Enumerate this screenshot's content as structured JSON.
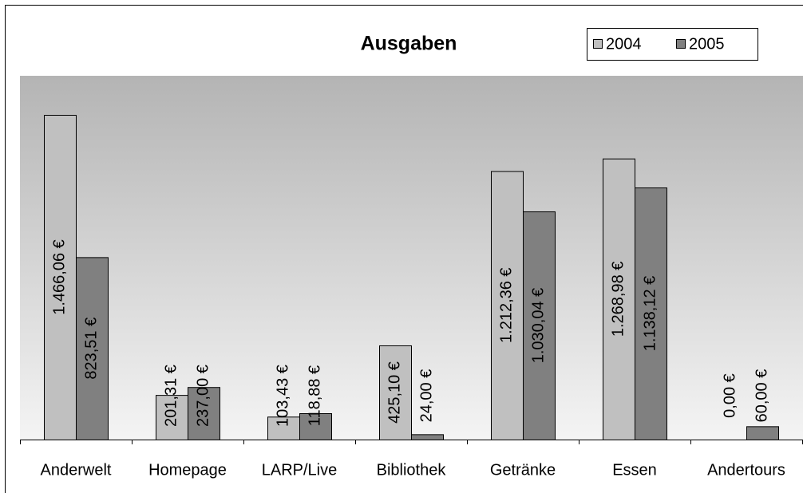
{
  "chart_data": {
    "type": "bar",
    "title": "Ausgaben",
    "categories": [
      "Anderwelt",
      "Homepage",
      "LARP/Live",
      "Bibliothek",
      "Getränke",
      "Essen",
      "Andertours"
    ],
    "series": [
      {
        "name": "2004",
        "color": "#c0c0c0",
        "values": [
          1466.06,
          201.31,
          103.43,
          425.1,
          1212.36,
          1268.98,
          0.0
        ],
        "value_labels": [
          "1.466,06 €",
          "201,31 €",
          "103,43 €",
          "425,10 €",
          "1.212,36 €",
          "1.268,98 €",
          "0,00 €"
        ]
      },
      {
        "name": "2005",
        "color": "#808080",
        "values": [
          823.51,
          237.0,
          118.88,
          24.0,
          1030.04,
          1138.12,
          60.0
        ],
        "value_labels": [
          "823,51 €",
          "237,00 €",
          "118,88 €",
          "24,00 €",
          "1.030,04 €",
          "1.138,12 €",
          "60,00 €"
        ]
      }
    ],
    "legend": "top-right"
  }
}
